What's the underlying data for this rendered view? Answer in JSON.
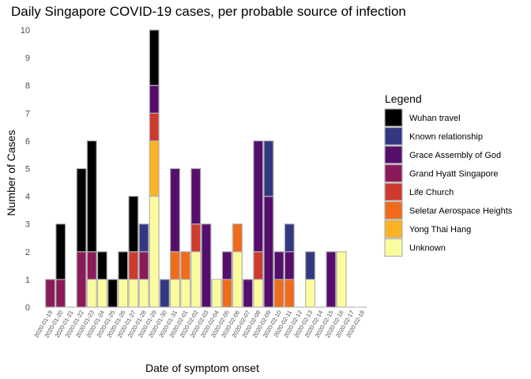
{
  "chart_data": {
    "type": "bar",
    "stacked": true,
    "title": "Daily Singapore COVID-19 cases, per probable source of infection",
    "xlabel": "Date of symptom onset",
    "ylabel": "Number of Cases",
    "ylim": [
      0,
      10
    ],
    "yticks": [
      0,
      1,
      2,
      3,
      4,
      5,
      6,
      7,
      8,
      9,
      10
    ],
    "grid": false,
    "legend": {
      "title": "Legend",
      "position": "right"
    },
    "categories": [
      "2020-01-19",
      "2020-01-20",
      "2020-01-21",
      "2020-01-22",
      "2020-01-23",
      "2020-01-24",
      "2020-01-25",
      "2020-01-26",
      "2020-01-27",
      "2020-01-28",
      "2020-01-29",
      "2020-01-30",
      "2020-01-31",
      "2020-02-01",
      "2020-02-02",
      "2020-02-03",
      "2020-02-04",
      "2020-02-05",
      "2020-02-06",
      "2020-02-07",
      "2020-02-08",
      "2020-02-09",
      "2020-02-10",
      "2020-02-11",
      "2020-02-12",
      "2020-02-13",
      "2020-02-14",
      "2020-02-15",
      "2020-02-16",
      "2020-02-17",
      "2020-02-18"
    ],
    "series": [
      {
        "name": "Unknown",
        "color": "#fcfc9f",
        "values": [
          0,
          0,
          0,
          0,
          1,
          1,
          0,
          1,
          1,
          1,
          4,
          0,
          1,
          1,
          2,
          0,
          1,
          0,
          2,
          0,
          1,
          0,
          0,
          0,
          0,
          1,
          0,
          0,
          2,
          0,
          0
        ]
      },
      {
        "name": "Yong Thai Hang",
        "color": "#fbb324",
        "values": [
          0,
          0,
          0,
          0,
          0,
          0,
          0,
          0,
          0,
          0,
          2,
          0,
          0,
          0,
          0,
          0,
          0,
          0,
          0,
          0,
          0,
          0,
          0,
          0,
          0,
          0,
          0,
          0,
          0,
          0,
          0
        ]
      },
      {
        "name": "Seletar Aerospace Heights",
        "color": "#f06b1a",
        "values": [
          0,
          0,
          0,
          0,
          0,
          0,
          0,
          0,
          0,
          0,
          0,
          0,
          1,
          1,
          0,
          0,
          0,
          1,
          1,
          0,
          0,
          0,
          1,
          1,
          0,
          0,
          0,
          0,
          0,
          0,
          0
        ]
      },
      {
        "name": "Life Church",
        "color": "#cd3a2e",
        "values": [
          0,
          0,
          0,
          0,
          0,
          0,
          0,
          0,
          1,
          0,
          1,
          0,
          0,
          0,
          1,
          0,
          0,
          0,
          0,
          0,
          1,
          0,
          0,
          0,
          0,
          0,
          0,
          0,
          0,
          0,
          0
        ]
      },
      {
        "name": "Grand Hyatt Singapore",
        "color": "#8c1a5a",
        "values": [
          1,
          1,
          0,
          2,
          1,
          0,
          0,
          0,
          0,
          1,
          0,
          0,
          0,
          0,
          0,
          0,
          0,
          0,
          0,
          0,
          0,
          0,
          0,
          0,
          0,
          0,
          0,
          0,
          0,
          0,
          0
        ]
      },
      {
        "name": "Grace Assembly of God",
        "color": "#560e6c",
        "values": [
          0,
          0,
          0,
          0,
          0,
          0,
          0,
          0,
          0,
          0,
          1,
          0,
          3,
          0,
          2,
          3,
          0,
          1,
          0,
          1,
          4,
          4,
          1,
          1,
          0,
          0,
          0,
          2,
          0,
          0,
          0
        ]
      },
      {
        "name": "Known relationship",
        "color": "#333882",
        "values": [
          0,
          0,
          0,
          0,
          0,
          0,
          0,
          0,
          0,
          1,
          0,
          1,
          0,
          0,
          0,
          0,
          0,
          0,
          0,
          0,
          0,
          2,
          0,
          1,
          0,
          1,
          0,
          0,
          0,
          0,
          0
        ]
      },
      {
        "name": "Wuhan travel",
        "color": "#000000",
        "values": [
          0,
          2,
          0,
          3,
          4,
          1,
          1,
          1,
          2,
          0,
          2,
          0,
          0,
          0,
          0,
          0,
          0,
          0,
          0,
          0,
          0,
          0,
          0,
          0,
          0,
          0,
          0,
          0,
          0,
          0,
          0
        ]
      }
    ],
    "legend_order": [
      "Wuhan travel",
      "Known relationship",
      "Grace Assembly of God",
      "Grand Hyatt Singapore",
      "Life Church",
      "Seletar Aerospace Heights",
      "Yong Thai Hang",
      "Unknown"
    ]
  }
}
